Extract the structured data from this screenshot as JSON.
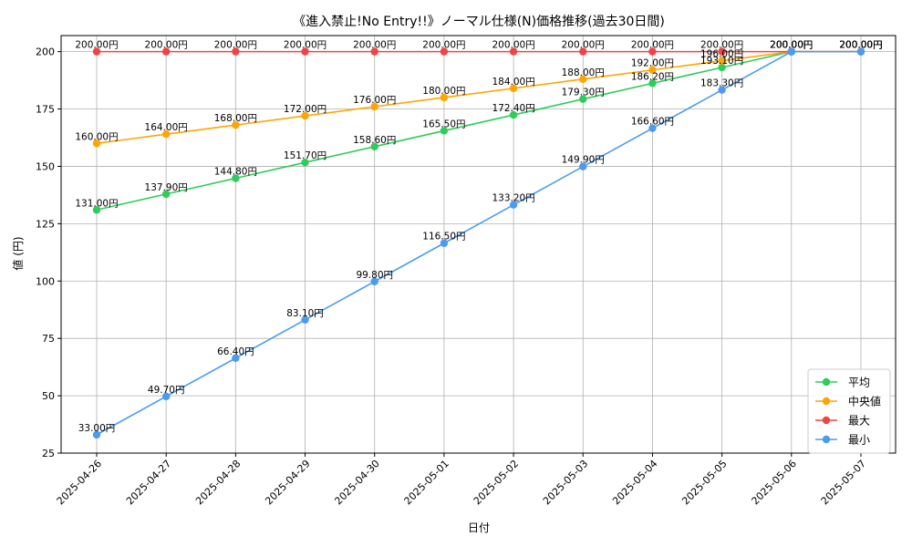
{
  "chart_data": {
    "type": "line",
    "title": "《進入禁止!No Entry!!》ノーマル仕様(N)価格推移(過去30日間)",
    "xlabel": "日付",
    "ylabel": "値 (円)",
    "ylim": [
      25,
      207
    ],
    "yticks": [
      25,
      50,
      75,
      100,
      125,
      150,
      175,
      200
    ],
    "grid": true,
    "legend_position": "bottom-right",
    "label_suffix": "円",
    "categories": [
      "2025-04-26",
      "2025-04-27",
      "2025-04-28",
      "2025-04-29",
      "2025-04-30",
      "2025-05-01",
      "2025-05-02",
      "2025-05-03",
      "2025-05-04",
      "2025-05-05",
      "2025-05-06",
      "2025-05-07"
    ],
    "series": [
      {
        "name": "平均",
        "color": "#2ecc5a",
        "values": [
          131.0,
          137.9,
          144.8,
          151.7,
          158.6,
          165.5,
          172.4,
          179.3,
          186.2,
          193.1,
          200.0,
          200.0
        ]
      },
      {
        "name": "中央値",
        "color": "#ffa500",
        "values": [
          160.0,
          164.0,
          168.0,
          172.0,
          176.0,
          180.0,
          184.0,
          188.0,
          192.0,
          196.0,
          200.0,
          200.0
        ]
      },
      {
        "name": "最大",
        "color": "#f04444",
        "values": [
          200.0,
          200.0,
          200.0,
          200.0,
          200.0,
          200.0,
          200.0,
          200.0,
          200.0,
          200.0,
          200.0,
          200.0
        ]
      },
      {
        "name": "最小",
        "color": "#4b9bf0",
        "values": [
          33.0,
          49.7,
          66.4,
          83.1,
          99.8,
          116.5,
          133.2,
          149.9,
          166.6,
          183.3,
          200.0,
          200.0
        ]
      }
    ]
  }
}
